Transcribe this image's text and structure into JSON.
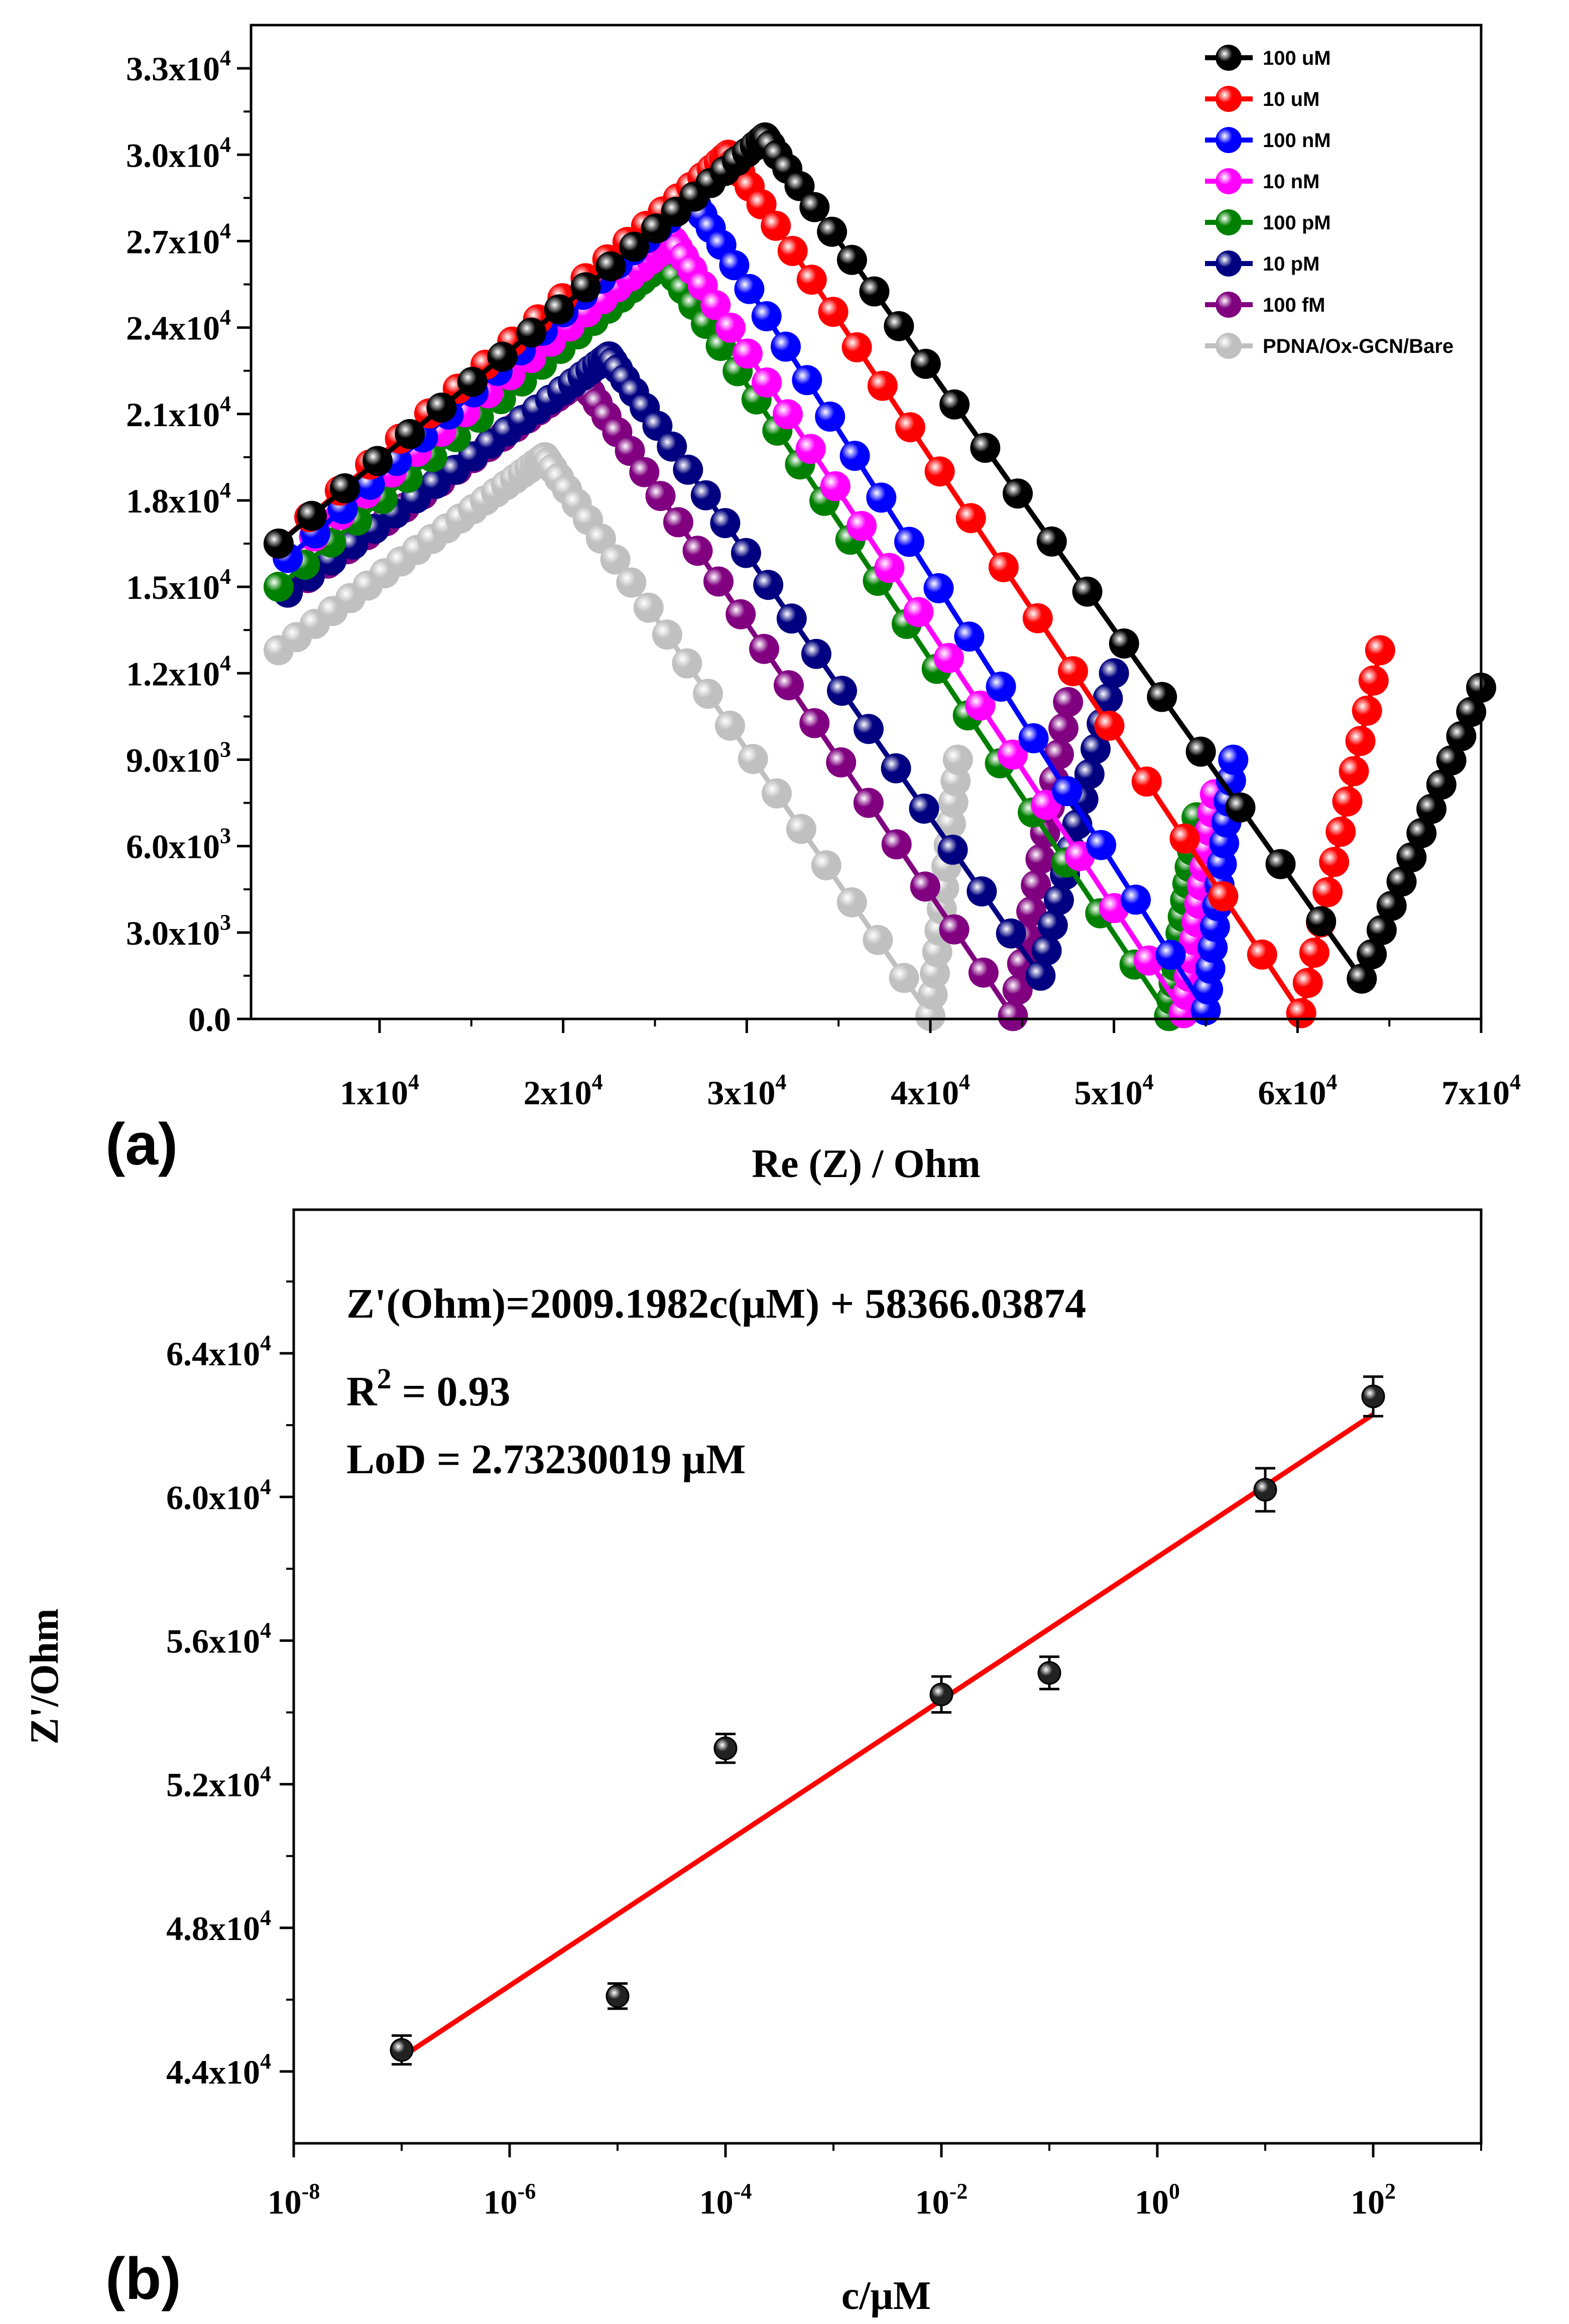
{
  "chart_data": [
    {
      "panel_label": "(a)",
      "type": "scatter",
      "title": "",
      "xlabel": "Re (Z) / Ohm",
      "ylabel": "",
      "xlim": [
        3000,
        70000
      ],
      "ylim": [
        0,
        34500
      ],
      "x_ticks": [
        {
          "value": 10000,
          "mant": "1x10",
          "exp": "4"
        },
        {
          "value": 20000,
          "mant": "2x10",
          "exp": "4"
        },
        {
          "value": 30000,
          "mant": "3x10",
          "exp": "4"
        },
        {
          "value": 40000,
          "mant": "4x10",
          "exp": "4"
        },
        {
          "value": 50000,
          "mant": "5x10",
          "exp": "4"
        },
        {
          "value": 60000,
          "mant": "6x10",
          "exp": "4"
        },
        {
          "value": 70000,
          "mant": "7x10",
          "exp": "4"
        }
      ],
      "y_ticks": [
        {
          "value": 0,
          "mant": "0.0",
          "exp": ""
        },
        {
          "value": 3000,
          "mant": "3.0x10",
          "exp": "3"
        },
        {
          "value": 6000,
          "mant": "6.0x10",
          "exp": "3"
        },
        {
          "value": 9000,
          "mant": "9.0x10",
          "exp": "3"
        },
        {
          "value": 12000,
          "mant": "1.2x10",
          "exp": "4"
        },
        {
          "value": 15000,
          "mant": "1.5x10",
          "exp": "4"
        },
        {
          "value": 18000,
          "mant": "1.8x10",
          "exp": "4"
        },
        {
          "value": 21000,
          "mant": "2.1x10",
          "exp": "4"
        },
        {
          "value": 24000,
          "mant": "2.4x10",
          "exp": "4"
        },
        {
          "value": 27000,
          "mant": "2.7x10",
          "exp": "4"
        },
        {
          "value": 30000,
          "mant": "3.0x10",
          "exp": "4"
        },
        {
          "value": 33000,
          "mant": "3.3x10",
          "exp": "4"
        }
      ],
      "legend_position": "top-right",
      "series": [
        {
          "name": "100 uM",
          "color": "#000000",
          "arc_start": [
            4500,
            16500
          ],
          "arc_peak": [
            31000,
            30600
          ],
          "arc_end": [
            63500,
            1400
          ],
          "tail_end": [
            70000,
            11500
          ]
        },
        {
          "name": "10 uM",
          "color": "#ff0000",
          "arc_start": [
            4500,
            16500
          ],
          "arc_peak": [
            29000,
            30000
          ],
          "arc_end": [
            60200,
            200
          ],
          "tail_end": [
            64500,
            12800
          ]
        },
        {
          "name": "100 nM",
          "color": "#0000ff",
          "arc_start": [
            5000,
            16000
          ],
          "arc_peak": [
            27000,
            28500
          ],
          "arc_end": [
            55000,
            300
          ],
          "tail_end": [
            56500,
            9000
          ]
        },
        {
          "name": "10 nM",
          "color": "#ff00ff",
          "arc_start": [
            5000,
            16000
          ],
          "arc_peak": [
            26000,
            27000
          ],
          "arc_end": [
            53800,
            200
          ],
          "tail_end": [
            55500,
            7800
          ]
        },
        {
          "name": "100 pM",
          "color": "#008000",
          "arc_start": [
            4500,
            15000
          ],
          "arc_peak": [
            25500,
            26300
          ],
          "arc_end": [
            53000,
            100
          ],
          "tail_end": [
            54500,
            7000
          ]
        },
        {
          "name": "10 pM",
          "color": "#000080",
          "arc_start": [
            5000,
            14800
          ],
          "arc_peak": [
            22500,
            23000
          ],
          "arc_end": [
            46000,
            1500
          ],
          "tail_end": [
            50000,
            12000
          ]
        },
        {
          "name": "100 fM",
          "color": "#800080",
          "arc_start": [
            5000,
            14800
          ],
          "arc_peak": [
            21000,
            22200
          ],
          "arc_end": [
            44500,
            100
          ],
          "tail_end": [
            47500,
            11000
          ]
        },
        {
          "name": "PDNA/Ox-GCN/Bare",
          "color": "#c0c0c0",
          "arc_start": [
            4500,
            12800
          ],
          "arc_peak": [
            19000,
            19500
          ],
          "arc_end": [
            40000,
            100
          ],
          "tail_end": [
            41500,
            9000
          ]
        }
      ]
    },
    {
      "panel_label": "(b)",
      "type": "scatter",
      "title": "",
      "xlabel": "c/μM",
      "ylabel": "Z'/Ohm",
      "xscale": "log",
      "xlim": [
        1e-08,
        1000
      ],
      "ylim": [
        42000,
        68000
      ],
      "x_ticks": [
        {
          "exp_value": -8,
          "base": "10",
          "exp": "-8"
        },
        {
          "exp_value": -6,
          "base": "10",
          "exp": "-6"
        },
        {
          "exp_value": -4,
          "base": "10",
          "exp": "-4"
        },
        {
          "exp_value": -2,
          "base": "10",
          "exp": "-2"
        },
        {
          "exp_value": 0,
          "base": "10",
          "exp": "0"
        },
        {
          "exp_value": 2,
          "base": "10",
          "exp": "2"
        }
      ],
      "y_ticks": [
        {
          "value": 44000,
          "mant": "4.4x10",
          "exp": "4"
        },
        {
          "value": 48000,
          "mant": "4.8x10",
          "exp": "4"
        },
        {
          "value": 52000,
          "mant": "5.2x10",
          "exp": "4"
        },
        {
          "value": 56000,
          "mant": "5.6x10",
          "exp": "4"
        },
        {
          "value": 60000,
          "mant": "6.0x10",
          "exp": "4"
        },
        {
          "value": 64000,
          "mant": "6.4x10",
          "exp": "4"
        }
      ],
      "points": [
        {
          "c": 1e-07,
          "z": 44600,
          "err": 400
        },
        {
          "c": 1e-05,
          "z": 46100,
          "err": 350
        },
        {
          "c": 0.0001,
          "z": 53000,
          "err": 400
        },
        {
          "c": 0.01,
          "z": 54500,
          "err": 500
        },
        {
          "c": 0.1,
          "z": 55100,
          "err": 450
        },
        {
          "c": 10,
          "z": 60200,
          "err": 600
        },
        {
          "c": 100,
          "z": 62800,
          "err": 550
        }
      ],
      "fit": {
        "c_start": 1e-07,
        "z_start": 44400,
        "c_end": 100,
        "z_end": 62300,
        "color": "#ff0000"
      },
      "annotations": {
        "equation": "Z'(Ohm)=2009.1982c(μM) + 58366.03874",
        "r2_prefix": "R",
        "r2_exp": "2",
        "r2_value": " = 0.93",
        "lod": "LoD = 2.73230019 μM"
      }
    }
  ]
}
